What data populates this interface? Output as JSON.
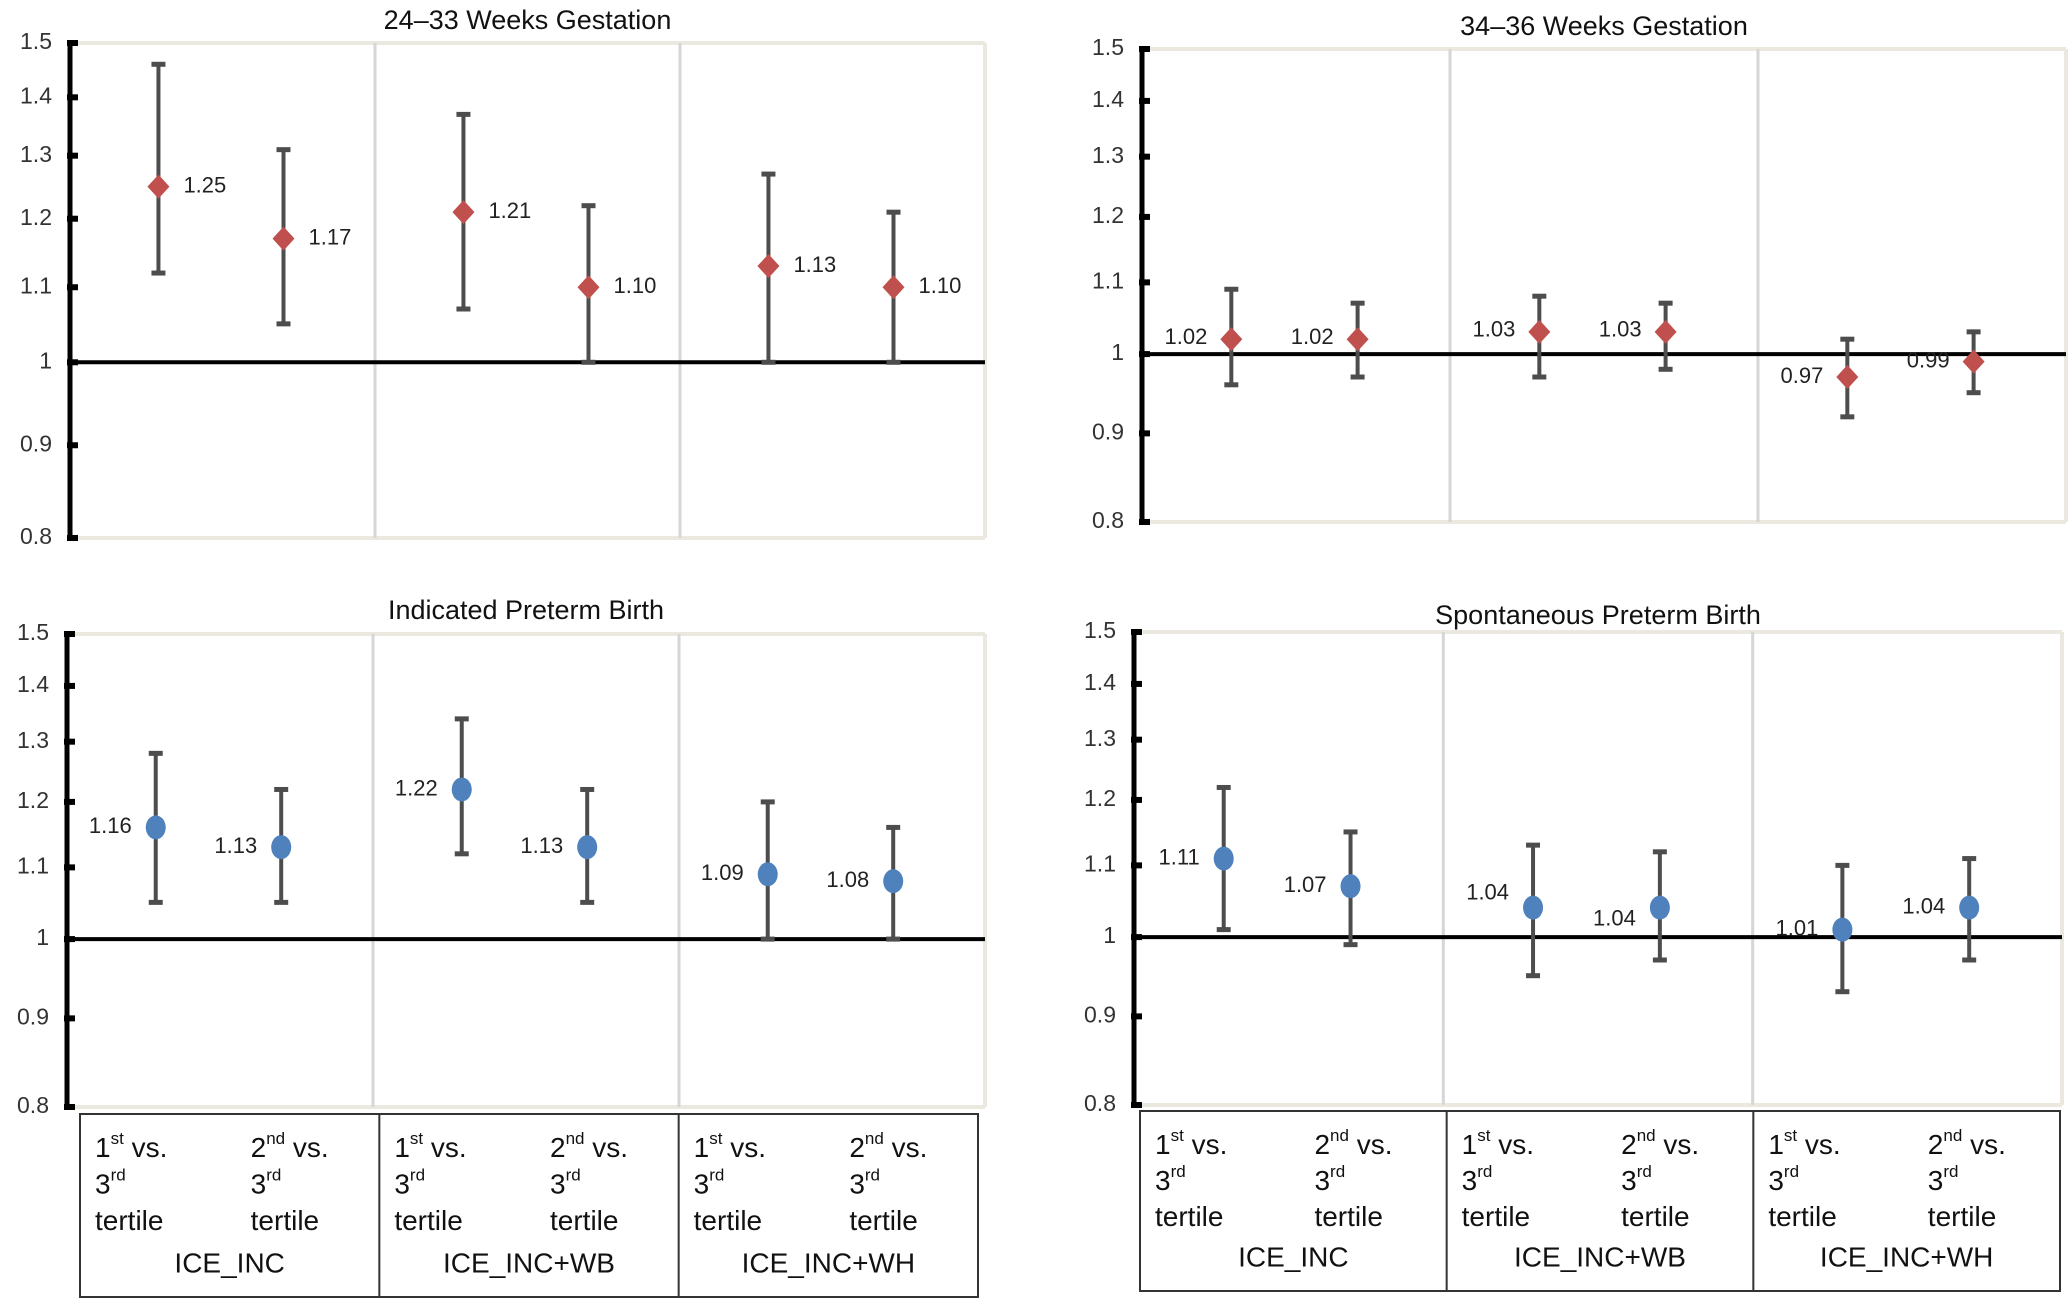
{
  "figure": {
    "colors": {
      "diamond": "#c0504d",
      "circle": "#4f81bd",
      "errorbar": "#4d4d4d",
      "axis": "#000000",
      "separator": "#d6d6d6",
      "frame": "#ebe9df"
    }
  },
  "chart_data": [
    {
      "type": "scatter",
      "title": "24–33 Weeks Gestation",
      "marker": "diamond",
      "scale": "log",
      "ylim": [
        0.8,
        1.5
      ],
      "yticks": [
        0.8,
        0.9,
        1.0,
        1.1,
        1.2,
        1.3,
        1.4,
        1.5
      ],
      "ytick_labels": [
        "0.8",
        "0.9",
        "1",
        "1.1",
        "1.2",
        "1.3",
        "1.4",
        "1.5"
      ],
      "reference_line": 1.0,
      "groups": [
        "ICE_INC",
        "ICE_INC+WB",
        "ICE_INC+WH"
      ],
      "comparisons": [
        "1st vs. 3rd tertile",
        "2nd vs. 3rd tertile"
      ],
      "points": [
        {
          "group": "ICE_INC",
          "comparison": "1st vs. 3rd tertile",
          "value": 1.25,
          "label": "1.25",
          "lower": 1.12,
          "upper": 1.46,
          "label_side": "right"
        },
        {
          "group": "ICE_INC",
          "comparison": "2nd vs. 3rd tertile",
          "value": 1.17,
          "label": "1.17",
          "lower": 1.05,
          "upper": 1.31,
          "label_side": "right"
        },
        {
          "group": "ICE_INC+WB",
          "comparison": "1st vs. 3rd tertile",
          "value": 1.21,
          "label": "1.21",
          "lower": 1.07,
          "upper": 1.37,
          "label_side": "right"
        },
        {
          "group": "ICE_INC+WB",
          "comparison": "2nd vs. 3rd tertile",
          "value": 1.1,
          "label": "1.10",
          "lower": 1.0,
          "upper": 1.22,
          "label_side": "right"
        },
        {
          "group": "ICE_INC+WH",
          "comparison": "1st vs. 3rd tertile",
          "value": 1.13,
          "label": "1.13",
          "lower": 1.0,
          "upper": 1.27,
          "label_side": "right"
        },
        {
          "group": "ICE_INC+WH",
          "comparison": "2nd vs. 3rd tertile",
          "value": 1.1,
          "label": "1.10",
          "lower": 1.0,
          "upper": 1.21,
          "label_side": "right"
        }
      ]
    },
    {
      "type": "scatter",
      "title": "34–36 Weeks Gestation",
      "marker": "diamond",
      "scale": "log",
      "ylim": [
        0.8,
        1.5
      ],
      "yticks": [
        0.8,
        0.9,
        1.0,
        1.1,
        1.2,
        1.3,
        1.4,
        1.5
      ],
      "ytick_labels": [
        "0.8",
        "0.9",
        "1",
        "1.1",
        "1.2",
        "1.3",
        "1.4",
        "1.5"
      ],
      "reference_line": 1.0,
      "groups": [
        "ICE_INC",
        "ICE_INC+WB",
        "ICE_INC+WH"
      ],
      "comparisons": [
        "1st vs. 3rd tertile",
        "2nd vs. 3rd tertile"
      ],
      "points": [
        {
          "group": "ICE_INC",
          "comparison": "1st vs. 3rd tertile",
          "value": 1.02,
          "label": "1.02",
          "lower": 0.96,
          "upper": 1.09,
          "label_side": "left"
        },
        {
          "group": "ICE_INC",
          "comparison": "2nd vs. 3rd tertile",
          "value": 1.02,
          "label": "1.02",
          "lower": 0.97,
          "upper": 1.07,
          "label_side": "left"
        },
        {
          "group": "ICE_INC+WB",
          "comparison": "1st vs. 3rd tertile",
          "value": 1.03,
          "label": "1.03",
          "lower": 0.97,
          "upper": 1.08,
          "label_side": "left"
        },
        {
          "group": "ICE_INC+WB",
          "comparison": "2nd vs. 3rd tertile",
          "value": 1.03,
          "label": "1.03",
          "lower": 0.98,
          "upper": 1.07,
          "label_side": "left"
        },
        {
          "group": "ICE_INC+WH",
          "comparison": "1st vs. 3rd tertile",
          "value": 0.97,
          "label": "0.97",
          "lower": 0.92,
          "upper": 1.02,
          "label_side": "left"
        },
        {
          "group": "ICE_INC+WH",
          "comparison": "2nd vs. 3rd tertile",
          "value": 0.99,
          "label": "0.99",
          "lower": 0.95,
          "upper": 1.03,
          "label_side": "left"
        }
      ]
    },
    {
      "type": "scatter",
      "title": "Indicated Preterm Birth",
      "marker": "circle",
      "scale": "log",
      "ylim": [
        0.8,
        1.5
      ],
      "yticks": [
        0.8,
        0.9,
        1.0,
        1.1,
        1.2,
        1.3,
        1.4,
        1.5
      ],
      "ytick_labels": [
        "0.8",
        "0.9",
        "1",
        "1.1",
        "1.2",
        "1.3",
        "1.4",
        "1.5"
      ],
      "reference_line": 1.0,
      "groups": [
        "ICE_INC",
        "ICE_INC+WB",
        "ICE_INC+WH"
      ],
      "comparisons": [
        "1st vs. 3rd tertile",
        "2nd vs. 3rd tertile"
      ],
      "points": [
        {
          "group": "ICE_INC",
          "comparison": "1st vs. 3rd tertile",
          "value": 1.16,
          "label": "1.16",
          "lower": 1.05,
          "upper": 1.28,
          "label_side": "left"
        },
        {
          "group": "ICE_INC",
          "comparison": "2nd vs. 3rd tertile",
          "value": 1.13,
          "label": "1.13",
          "lower": 1.05,
          "upper": 1.22,
          "label_side": "left"
        },
        {
          "group": "ICE_INC+WB",
          "comparison": "1st vs. 3rd tertile",
          "value": 1.22,
          "label": "1.22",
          "lower": 1.12,
          "upper": 1.34,
          "label_side": "left"
        },
        {
          "group": "ICE_INC+WB",
          "comparison": "2nd vs. 3rd tertile",
          "value": 1.13,
          "label": "1.13",
          "lower": 1.05,
          "upper": 1.22,
          "label_side": "left"
        },
        {
          "group": "ICE_INC+WH",
          "comparison": "1st vs. 3rd tertile",
          "value": 1.09,
          "label": "1.09",
          "lower": 1.0,
          "upper": 1.2,
          "label_side": "left"
        },
        {
          "group": "ICE_INC+WH",
          "comparison": "2nd vs. 3rd tertile",
          "value": 1.08,
          "label": "1.08",
          "lower": 1.0,
          "upper": 1.16,
          "label_side": "left"
        }
      ]
    },
    {
      "type": "scatter",
      "title": "Spontaneous Preterm Birth",
      "marker": "circle",
      "scale": "log",
      "ylim": [
        0.8,
        1.5
      ],
      "yticks": [
        0.8,
        0.9,
        1.0,
        1.1,
        1.2,
        1.3,
        1.4,
        1.5
      ],
      "ytick_labels": [
        "0.8",
        "0.9",
        "1",
        "1.1",
        "1.2",
        "1.3",
        "1.4",
        "1.5"
      ],
      "reference_line": 1.0,
      "groups": [
        "ICE_INC",
        "ICE_INC+WB",
        "ICE_INC+WH"
      ],
      "comparisons": [
        "1st vs. 3rd tertile",
        "2nd vs. 3rd tertile"
      ],
      "points": [
        {
          "group": "ICE_INC",
          "comparison": "1st vs. 3rd tertile",
          "value": 1.11,
          "label": "1.11",
          "lower": 1.01,
          "upper": 1.22,
          "label_side": "left"
        },
        {
          "group": "ICE_INC",
          "comparison": "2nd vs. 3rd tertile",
          "value": 1.07,
          "label": "1.07",
          "lower": 0.99,
          "upper": 1.15,
          "label_side": "left"
        },
        {
          "group": "ICE_INC+WB",
          "comparison": "1st vs. 3rd tertile",
          "value": 1.04,
          "label": "1.04",
          "lower": 0.95,
          "upper": 1.13,
          "label_side": "left-up"
        },
        {
          "group": "ICE_INC+WB",
          "comparison": "2nd vs. 3rd tertile",
          "value": 1.04,
          "label": "1.04",
          "lower": 0.97,
          "upper": 1.12,
          "label_side": "left-down"
        },
        {
          "group": "ICE_INC+WH",
          "comparison": "1st vs. 3rd tertile",
          "value": 1.01,
          "label": "1.01",
          "lower": 0.93,
          "upper": 1.1,
          "label_side": "left"
        },
        {
          "group": "ICE_INC+WH",
          "comparison": "2nd vs. 3rd tertile",
          "value": 1.04,
          "label": "1.04",
          "lower": 0.97,
          "upper": 1.11,
          "label_side": "left"
        }
      ]
    }
  ],
  "category_table": {
    "comparison_lines": [
      [
        {
          "base": "1",
          "sup": "st",
          "rest": " vs."
        },
        {
          "base": "3",
          "sup": "rd",
          "rest": ""
        },
        {
          "base": "tertile",
          "sup": "",
          "rest": ""
        }
      ],
      [
        {
          "base": "2",
          "sup": "nd",
          "rest": " vs."
        },
        {
          "base": "3",
          "sup": "rd",
          "rest": ""
        },
        {
          "base": "tertile",
          "sup": "",
          "rest": ""
        }
      ]
    ],
    "groups": [
      "ICE_INC",
      "ICE_INC+WB",
      "ICE_INC+WH"
    ]
  }
}
